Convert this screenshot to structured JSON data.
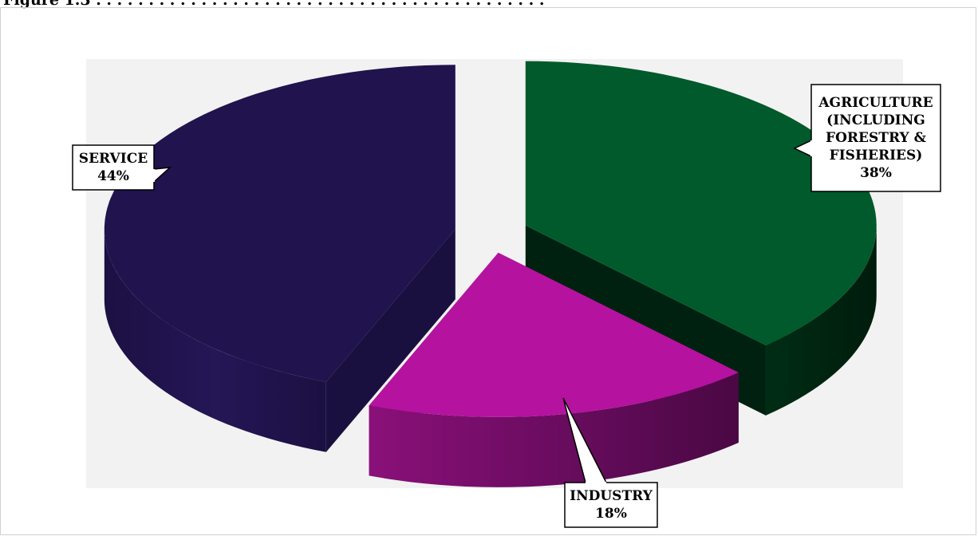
{
  "caption": "Figure 1.3   . . . . . . . . . . . . . . . . . . . . . . . . . . . . . . . . . . . . . . . . . . .",
  "chart_data": {
    "type": "pie",
    "style": "3d-exploded",
    "title": "",
    "slices": [
      {
        "label": "AGRICULTURE (INCLUDING FORESTRY & FISHERIES)",
        "label_lines": [
          "AGRICULTURE",
          "(INCLUDING",
          "FORESTRY &",
          "FISHERIES)"
        ],
        "value": 38,
        "value_label": "38%",
        "color": "#005a2b",
        "side_color": "#00210f"
      },
      {
        "label": "INDUSTRY",
        "label_lines": [
          "INDUSTRY"
        ],
        "value": 18,
        "value_label": "18%",
        "color": "#b5129f",
        "side_color": "#5e0b55"
      },
      {
        "label": "SERVICE",
        "label_lines": [
          "SERVICE"
        ],
        "value": 44,
        "value_label": "44%",
        "color": "#21134d",
        "side_color": "#1a1040"
      }
    ],
    "plot_background": "#f2f2f2"
  }
}
